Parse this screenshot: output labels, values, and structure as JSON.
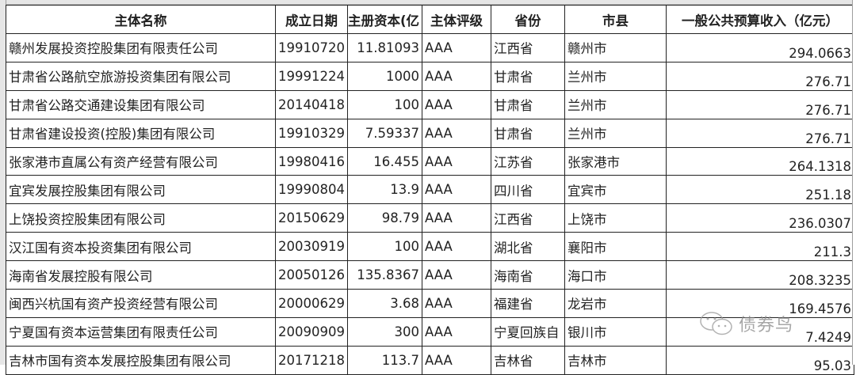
{
  "headers": [
    "主体名称",
    "成立日期",
    "主册资本(亿",
    "主体评级",
    "省份",
    "市县",
    "一般公共预算收入（亿元）"
  ],
  "rows": [
    {
      "name": "赣州发展投资控股集团有限责任公司",
      "date": "19910720",
      "capital": "11.81093",
      "rating": "AAA",
      "province": "江西省",
      "city": "赣州市",
      "revenue": "294.0663"
    },
    {
      "name": "甘肃省公路航空旅游投资集团有限公司",
      "date": "19991224",
      "capital": "1000",
      "rating": "AAA",
      "province": "甘肃省",
      "city": "兰州市",
      "revenue": "276.71"
    },
    {
      "name": "甘肃省公路交通建设集团有限公司",
      "date": "20140418",
      "capital": "100",
      "rating": "AAA",
      "province": "甘肃省",
      "city": "兰州市",
      "revenue": "276.71"
    },
    {
      "name": "甘肃省建设投资(控股)集团有限公司",
      "date": "19910329",
      "capital": "7.59337",
      "rating": "AAA",
      "province": "甘肃省",
      "city": "兰州市",
      "revenue": "276.71"
    },
    {
      "name": "张家港市直属公有资产经营有限公司",
      "date": "19980416",
      "capital": "16.455",
      "rating": "AAA",
      "province": "江苏省",
      "city": "张家港市",
      "revenue": "264.1318"
    },
    {
      "name": "宜宾发展控股集团有限公司",
      "date": "19990804",
      "capital": "13.9",
      "rating": "AAA",
      "province": "四川省",
      "city": "宜宾市",
      "revenue": "251.18"
    },
    {
      "name": "上饶投资控股集团有限公司",
      "date": "20150629",
      "capital": "98.79",
      "rating": "AAA",
      "province": "江西省",
      "city": "上饶市",
      "revenue": "236.0307"
    },
    {
      "name": "汉江国有资本投资集团有限公司",
      "date": "20030919",
      "capital": "100",
      "rating": "AAA",
      "province": "湖北省",
      "city": "襄阳市",
      "revenue": "211.3"
    },
    {
      "name": "海南省发展控股有限公司",
      "date": "20050126",
      "capital": "135.8367",
      "rating": "AAA",
      "province": "海南省",
      "city": "海口市",
      "revenue": "208.3235"
    },
    {
      "name": "闽西兴杭国有资产投资经营有限公司",
      "date": "20000629",
      "capital": "3.68",
      "rating": "AAA",
      "province": "福建省",
      "city": "龙岩市",
      "revenue": "169.4576"
    },
    {
      "name": "宁夏国有资本运营集团有限责任公司",
      "date": "20090909",
      "capital": "300",
      "rating": "AAA",
      "province": "宁夏回族自",
      "city": "银川市",
      "revenue": "7.4249"
    },
    {
      "name": "吉林市国有资本发展控股集团有限公司",
      "date": "20171218",
      "capital": "113.7",
      "rating": "AAA",
      "province": "吉林省",
      "city": "吉林市",
      "revenue": "95.03"
    }
  ],
  "watermark": {
    "text": "债券鸟",
    "icon": "wechat-icon"
  }
}
